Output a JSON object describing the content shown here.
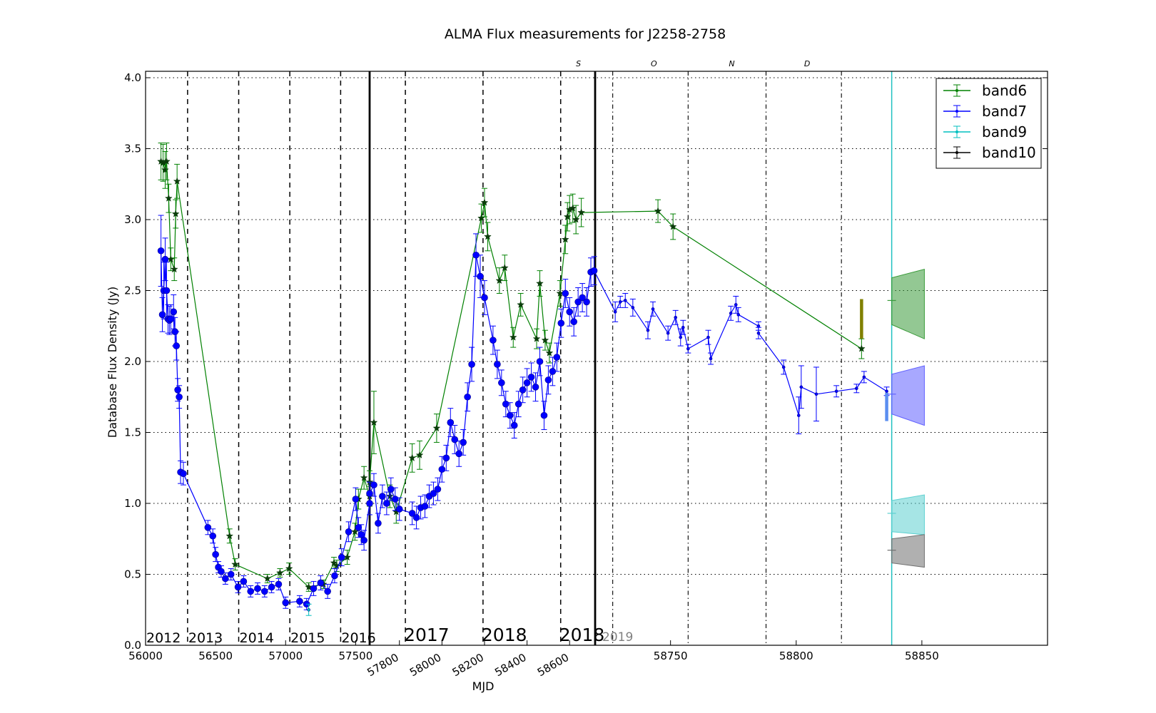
{
  "chart_data": {
    "type": "line",
    "title": "ALMA Flux measurements for J2258-2758",
    "xlabel": "MJD",
    "ylabel": "Database Flux Density (Jy)",
    "ylim": [
      0.0,
      4.0
    ],
    "yticks": [
      "0.0",
      "0.5",
      "1.0",
      "1.5",
      "2.0",
      "2.5",
      "3.0",
      "3.5",
      "4.0"
    ],
    "grid": true,
    "legend_position": "top-right",
    "x_axis_note": "Piecewise (broken) MJD axis: 2012–2016 compressed, 2017–2018 expanded, 2019 segment with month markers",
    "axis_segments": [
      {
        "name": "seg1",
        "xlim": [
          56000,
          57600
        ],
        "ticks": [
          56000,
          56500,
          57000,
          57500
        ],
        "tick_labels": [
          "56000",
          "56500",
          "57000",
          "57500"
        ],
        "year_lines": [
          56300,
          56665,
          57030,
          57393
        ],
        "years": [
          "2012",
          "2013",
          "2014",
          "2015",
          "2016"
        ]
      },
      {
        "name": "seg2",
        "xlim": [
          57660,
          58720
        ],
        "ticks": [
          57800,
          58000,
          58200,
          58400,
          58600
        ],
        "tick_labels": [
          "57800",
          "58000",
          "58200",
          "58400",
          "58600"
        ],
        "year_lines": [
          57828,
          58193,
          58558
        ],
        "years": [
          "2017",
          "2018",
          "2018"
        ]
      },
      {
        "name": "seg3",
        "xlim": [
          58720,
          58900
        ],
        "ticks": [
          58750,
          58800,
          58850
        ],
        "tick_labels": [
          "58750",
          "58800",
          "58850"
        ],
        "month_lines": [
          58727,
          58757,
          58788,
          58818
        ],
        "months": [
          "S",
          "O",
          "N",
          "D"
        ],
        "year": "2019",
        "now_line": 58838
      }
    ],
    "series": [
      {
        "name": "band6",
        "color": "#008000",
        "marker": "star",
        "x": [
          56110,
          56125,
          56140,
          56150,
          56165,
          56180,
          56205,
          56215,
          56225,
          56600,
          56640,
          56870,
          56960,
          57025,
          57165,
          57270,
          57345,
          57365,
          57440,
          57495,
          57520,
          57560,
          57600,
          57640,
          57680,
          57755,
          57785,
          57860,
          57895,
          57975,
          58185,
          58200,
          58215,
          58270,
          58295,
          58335,
          58370,
          58445,
          58460,
          58485,
          58505,
          58555,
          58580,
          58590,
          58600,
          58615,
          58630,
          58655,
          58745,
          58751,
          58826
        ],
        "y": [
          3.41,
          3.4,
          3.35,
          3.41,
          3.15,
          2.72,
          2.65,
          3.04,
          3.27,
          0.77,
          0.57,
          0.47,
          0.51,
          0.54,
          0.41,
          0.43,
          0.58,
          0.56,
          0.62,
          0.8,
          1.03,
          1.18,
          1.05,
          1.15,
          1.57,
          1.05,
          0.94,
          1.32,
          1.34,
          1.53,
          3.01,
          3.12,
          2.88,
          2.57,
          2.66,
          2.17,
          2.4,
          2.16,
          2.55,
          2.15,
          2.06,
          2.48,
          2.86,
          3.02,
          3.07,
          3.08,
          3.0,
          3.05,
          3.06,
          2.95,
          2.09
        ],
        "err": [
          0.13,
          0.13,
          0.13,
          0.13,
          0.1,
          0.08,
          0.08,
          0.1,
          0.12,
          0.05,
          0.04,
          0.03,
          0.03,
          0.04,
          0.03,
          0.03,
          0.04,
          0.04,
          0.05,
          0.06,
          0.07,
          0.08,
          0.07,
          0.08,
          0.22,
          0.08,
          0.08,
          0.1,
          0.1,
          0.1,
          0.1,
          0.1,
          0.1,
          0.09,
          0.09,
          0.07,
          0.08,
          0.07,
          0.09,
          0.07,
          0.07,
          0.09,
          0.1,
          0.1,
          0.1,
          0.1,
          0.1,
          0.1,
          0.08,
          0.09,
          0.07
        ]
      },
      {
        "name": "band7",
        "color": "#0000ff",
        "marker": "circle",
        "x": [
          56110,
          56120,
          56130,
          56140,
          56150,
          56160,
          56170,
          56180,
          56200,
          56210,
          56220,
          56230,
          56240,
          56250,
          56270,
          56445,
          56480,
          56500,
          56520,
          56540,
          56570,
          56610,
          56660,
          56700,
          56750,
          56800,
          56850,
          56900,
          56950,
          57000,
          57100,
          57150,
          57200,
          57250,
          57300,
          57350,
          57400,
          57450,
          57500,
          57520,
          57540,
          57560,
          57600,
          57640,
          57680,
          57700,
          57720,
          57740,
          57760,
          57780,
          57800,
          57860,
          57880,
          57900,
          57920,
          57940,
          57960,
          57980,
          58000,
          58020,
          58040,
          58060,
          58080,
          58100,
          58120,
          58140,
          58160,
          58180,
          58200,
          58240,
          58260,
          58280,
          58300,
          58320,
          58340,
          58360,
          58380,
          58400,
          58420,
          58440,
          58460,
          58480,
          58500,
          58520,
          58540,
          58560,
          58580,
          58600,
          58620,
          58640,
          58660,
          58680,
          58700,
          58715,
          58728,
          58730,
          58732,
          58735,
          58741,
          58743,
          58749,
          58752,
          58754,
          58755,
          58757,
          58765,
          58766,
          58774,
          58776,
          58777,
          58785,
          58785,
          58795,
          58801,
          58802,
          58808,
          58816,
          58824,
          58827,
          58836
        ],
        "y": [
          2.78,
          2.33,
          2.5,
          2.72,
          2.5,
          2.3,
          2.29,
          2.3,
          2.35,
          2.21,
          2.11,
          1.8,
          1.75,
          1.22,
          1.21,
          0.83,
          0.77,
          0.64,
          0.55,
          0.52,
          0.47,
          0.5,
          0.41,
          0.45,
          0.38,
          0.4,
          0.38,
          0.41,
          0.43,
          0.3,
          0.31,
          0.29,
          0.4,
          0.44,
          0.38,
          0.49,
          0.62,
          0.8,
          1.03,
          0.83,
          0.78,
          0.74,
          1.0,
          1.07,
          1.13,
          0.86,
          1.05,
          1.0,
          1.1,
          1.03,
          0.96,
          0.93,
          0.9,
          0.97,
          0.98,
          1.05,
          1.07,
          1.1,
          1.24,
          1.32,
          1.57,
          1.45,
          1.35,
          1.43,
          1.75,
          1.98,
          2.75,
          2.6,
          2.45,
          2.15,
          1.98,
          1.85,
          1.7,
          1.62,
          1.55,
          1.7,
          1.8,
          1.85,
          1.89,
          1.82,
          2.0,
          1.62,
          1.87,
          1.93,
          2.03,
          2.27,
          2.48,
          2.35,
          2.28,
          2.42,
          2.45,
          2.42,
          2.63,
          2.64,
          2.35,
          2.42,
          2.43,
          2.38,
          2.22,
          2.37,
          2.2,
          2.31,
          2.17,
          2.24,
          2.09,
          2.17,
          2.02,
          2.34,
          2.4,
          2.33,
          2.25,
          2.2,
          1.96,
          1.62,
          1.82,
          1.77,
          1.79,
          1.81,
          1.89,
          1.79
        ],
        "err": [
          0.25,
          0.12,
          0.2,
          0.15,
          0.2,
          0.1,
          0.1,
          0.1,
          0.12,
          0.1,
          0.1,
          0.08,
          0.08,
          0.08,
          0.08,
          0.05,
          0.05,
          0.05,
          0.04,
          0.04,
          0.04,
          0.04,
          0.04,
          0.04,
          0.04,
          0.04,
          0.04,
          0.04,
          0.04,
          0.04,
          0.04,
          0.04,
          0.05,
          0.05,
          0.05,
          0.05,
          0.06,
          0.07,
          0.08,
          0.07,
          0.07,
          0.07,
          0.08,
          0.08,
          0.08,
          0.07,
          0.08,
          0.08,
          0.08,
          0.08,
          0.08,
          0.08,
          0.08,
          0.08,
          0.08,
          0.08,
          0.08,
          0.08,
          0.09,
          0.09,
          0.1,
          0.1,
          0.09,
          0.09,
          0.1,
          0.12,
          0.15,
          0.15,
          0.12,
          0.1,
          0.1,
          0.09,
          0.09,
          0.09,
          0.09,
          0.09,
          0.09,
          0.1,
          0.1,
          0.1,
          0.1,
          0.1,
          0.1,
          0.1,
          0.1,
          0.1,
          0.1,
          0.1,
          0.1,
          0.1,
          0.1,
          0.1,
          0.1,
          0.1,
          0.07,
          0.04,
          0.05,
          0.06,
          0.06,
          0.05,
          0.05,
          0.05,
          0.06,
          0.05,
          0.03,
          0.05,
          0.04,
          0.05,
          0.06,
          0.05,
          0.03,
          0.04,
          0.05,
          0.13,
          0.15,
          0.19,
          0.04,
          0.03,
          0.04,
          0.03
        ]
      },
      {
        "name": "band9",
        "color": "#00bfbf",
        "marker": "circle",
        "x": [
          57165
        ],
        "y": [
          0.25
        ],
        "err": [
          0.04
        ]
      },
      {
        "name": "band10",
        "color": "#000000",
        "marker": "circle",
        "x": [],
        "y": [],
        "err": []
      }
    ],
    "latest_markers": [
      {
        "band": "band6",
        "x": 58826,
        "y_low": 2.16,
        "y_high": 2.44,
        "color": "#808000"
      },
      {
        "band": "band7",
        "x": 58836,
        "y_low": 1.58,
        "y_high": 1.78,
        "color": "#5b8ef0"
      }
    ],
    "predictions": [
      {
        "band": "band6",
        "color": "#3a9b3a",
        "start": 2.43,
        "x_from": 58838,
        "x_to": 58851,
        "left": [
          2.26,
          2.59
        ],
        "right": [
          2.16,
          2.65
        ]
      },
      {
        "band": "band7",
        "color": "#6060ff",
        "start": 1.77,
        "x_from": 58838,
        "x_to": 58851,
        "left": [
          1.63,
          1.91
        ],
        "right": [
          1.55,
          1.97
        ]
      },
      {
        "band": "band9",
        "color": "#5cd0d0",
        "start": 0.93,
        "x_from": 58838,
        "x_to": 58851,
        "left": [
          0.8,
          1.02
        ],
        "right": [
          0.78,
          1.06
        ]
      },
      {
        "band": "band10",
        "color": "#707070",
        "start": 0.67,
        "x_from": 58838,
        "x_to": 58851,
        "left": [
          0.58,
          0.75
        ],
        "right": [
          0.55,
          0.78
        ]
      }
    ]
  }
}
